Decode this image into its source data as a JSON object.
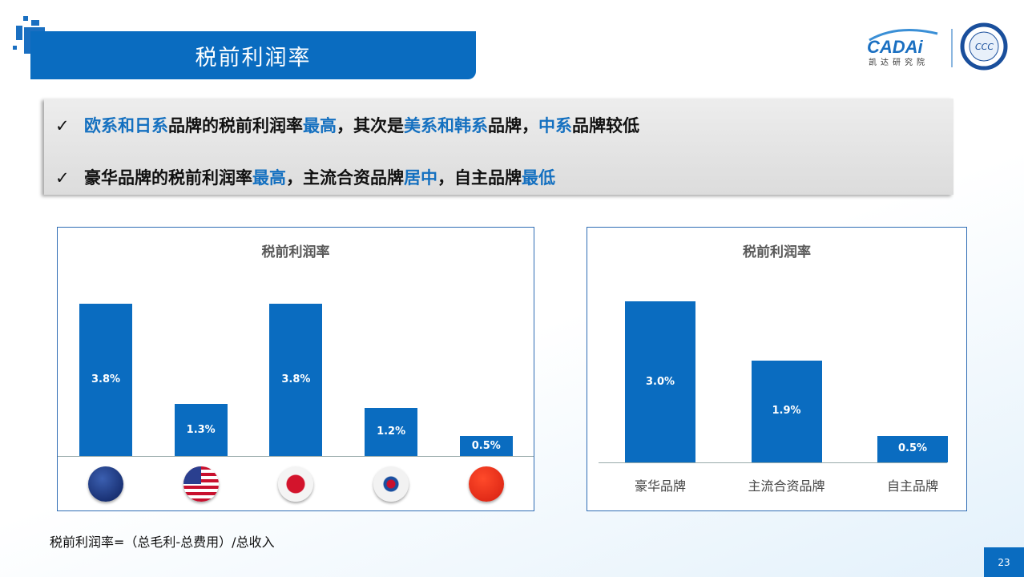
{
  "header": {
    "title": "税前利润率",
    "logo_text": "CADAi",
    "logo_subtitle": "凯达研究院"
  },
  "callout": {
    "lines": [
      [
        {
          "t": "欧系和日系",
          "hl": true
        },
        {
          "t": "品牌的税前利润率",
          "hl": false
        },
        {
          "t": "最高",
          "hl": true
        },
        {
          "t": "，其次是",
          "hl": false
        },
        {
          "t": "美系和韩系",
          "hl": true
        },
        {
          "t": "品牌，",
          "hl": false
        },
        {
          "t": "中系",
          "hl": true
        },
        {
          "t": "品牌较低",
          "hl": false
        }
      ],
      [
        {
          "t": "豪华品牌的税前利润率",
          "hl": false
        },
        {
          "t": "最高",
          "hl": true
        },
        {
          "t": "，主流合资品牌",
          "hl": false
        },
        {
          "t": "居中",
          "hl": true
        },
        {
          "t": "，自主品牌",
          "hl": false
        },
        {
          "t": "最低",
          "hl": true
        }
      ]
    ],
    "check": "✓"
  },
  "chart_data": [
    {
      "type": "bar",
      "title": "税前利润率",
      "categories": [
        "EU",
        "US",
        "Japan",
        "Korea",
        "China"
      ],
      "category_icons": [
        "eu-flag",
        "us-flag",
        "japan-flag",
        "korea-flag",
        "china-flag"
      ],
      "values": [
        3.8,
        1.3,
        3.8,
        1.2,
        0.5
      ],
      "labels": [
        "3.8%",
        "1.3%",
        "3.8%",
        "1.2%",
        "0.5%"
      ],
      "bar_color": "#0a6cc0"
    },
    {
      "type": "bar",
      "title": "税前利润率",
      "categories": [
        "豪华品牌",
        "主流合资品牌",
        "自主品牌"
      ],
      "values": [
        3.0,
        1.9,
        0.5
      ],
      "labels": [
        "3.0%",
        "1.9%",
        "0.5%"
      ],
      "bar_color": "#0a6cc0"
    }
  ],
  "footer": {
    "formula": "税前利润率=（总毛利-总费用）/总收入",
    "page": "23"
  }
}
